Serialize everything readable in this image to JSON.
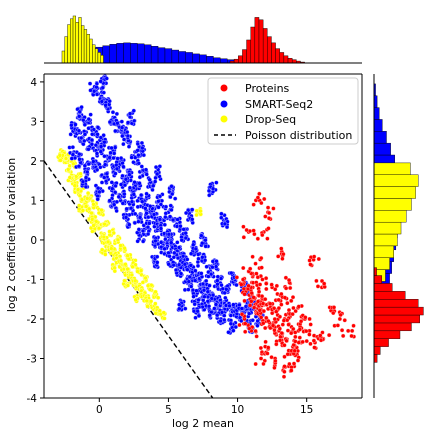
{
  "chart_data": {
    "type": "scatter",
    "title": "",
    "xlabel": "log 2 mean",
    "ylabel": "log 2 coefficient of variation",
    "xlim": [
      -4,
      19
    ],
    "ylim": [
      -4,
      4.2
    ],
    "xticks": [
      0,
      5,
      10,
      15
    ],
    "yticks": [
      -4,
      -3,
      -2,
      -1,
      0,
      1,
      2,
      3,
      4
    ],
    "grid": false,
    "legend_position": "top-right",
    "series": [
      {
        "name": "Proteins",
        "color": "#ff0000",
        "marker": "circle",
        "points": [
          [
            10.2,
            -1.1
          ],
          [
            10.6,
            -1.3
          ],
          [
            10.9,
            -1.5
          ],
          [
            11.2,
            -1.7
          ],
          [
            11.4,
            -1.6
          ],
          [
            11.6,
            -1.9
          ],
          [
            11.9,
            -1.8
          ],
          [
            12.1,
            -2.0
          ],
          [
            12.3,
            -2.2
          ],
          [
            12.6,
            -2.1
          ],
          [
            12.8,
            -2.4
          ],
          [
            13.0,
            -2.3
          ],
          [
            13.2,
            -2.6
          ],
          [
            13.5,
            -2.5
          ],
          [
            13.7,
            -2.8
          ],
          [
            14.0,
            -2.7
          ],
          [
            14.3,
            -2.9
          ],
          [
            14.6,
            -2.6
          ],
          [
            11.1,
            -1.2
          ],
          [
            11.5,
            -1.4
          ],
          [
            12.0,
            -1.5
          ],
          [
            12.4,
            -1.7
          ],
          [
            12.9,
            -1.9
          ],
          [
            13.4,
            -2.0
          ],
          [
            13.9,
            -2.2
          ],
          [
            14.4,
            -2.3
          ],
          [
            10.8,
            -0.8
          ],
          [
            11.3,
            -0.6
          ],
          [
            11.8,
            -1.0
          ],
          [
            12.5,
            -1.2
          ],
          [
            13.1,
            -1.4
          ],
          [
            13.6,
            -1.6
          ],
          [
            14.2,
            -1.8
          ],
          [
            14.8,
            -2.0
          ],
          [
            15.2,
            -2.3
          ],
          [
            15.6,
            -2.6
          ],
          [
            16.2,
            -2.5
          ],
          [
            17.0,
            -1.8
          ],
          [
            17.4,
            -2.0
          ],
          [
            18.0,
            -2.3
          ],
          [
            12.2,
            0.7
          ],
          [
            11.9,
            0.2
          ],
          [
            11.6,
            1.0
          ],
          [
            10.8,
            0.2
          ],
          [
            13.2,
            -0.3
          ],
          [
            15.5,
            -0.5
          ],
          [
            16.1,
            -1.2
          ],
          [
            11.7,
            -3.0
          ],
          [
            12.7,
            -3.1
          ],
          [
            13.3,
            -3.3
          ],
          [
            14.1,
            -3.2
          ],
          [
            11.0,
            -2.3
          ],
          [
            10.5,
            -2.0
          ],
          [
            12.0,
            -2.7
          ],
          [
            13.8,
            -1.1
          ]
        ]
      },
      {
        "name": "SMART-Seq2",
        "color": "#0000ff",
        "marker": "circle",
        "points": [
          [
            -1.8,
            2.8
          ],
          [
            -1.5,
            3.2
          ],
          [
            -1.2,
            2.6
          ],
          [
            -0.9,
            3.0
          ],
          [
            -0.6,
            2.4
          ],
          [
            -0.3,
            2.7
          ],
          [
            0.0,
            2.3
          ],
          [
            0.3,
            2.5
          ],
          [
            0.6,
            2.0
          ],
          [
            0.9,
            2.2
          ],
          [
            1.2,
            1.8
          ],
          [
            1.5,
            1.9
          ],
          [
            1.8,
            1.5
          ],
          [
            2.1,
            1.6
          ],
          [
            2.4,
            1.2
          ],
          [
            2.7,
            1.3
          ],
          [
            3.0,
            1.0
          ],
          [
            3.3,
            1.0
          ],
          [
            3.6,
            0.7
          ],
          [
            3.9,
            0.7
          ],
          [
            4.2,
            0.4
          ],
          [
            4.5,
            0.4
          ],
          [
            4.8,
            0.1
          ],
          [
            5.1,
            0.0
          ],
          [
            5.4,
            -0.2
          ],
          [
            5.7,
            -0.3
          ],
          [
            6.0,
            -0.5
          ],
          [
            6.3,
            -0.6
          ],
          [
            6.6,
            -0.8
          ],
          [
            6.9,
            -0.9
          ],
          [
            7.2,
            -1.0
          ],
          [
            7.5,
            -1.2
          ],
          [
            7.8,
            -1.3
          ],
          [
            8.1,
            -1.4
          ],
          [
            8.4,
            -1.5
          ],
          [
            8.7,
            -1.6
          ],
          [
            9.0,
            -1.7
          ],
          [
            9.3,
            -1.7
          ],
          [
            9.6,
            -1.8
          ],
          [
            9.9,
            -1.8
          ],
          [
            10.2,
            -1.9
          ],
          [
            10.5,
            -1.8
          ],
          [
            10.8,
            -1.7
          ],
          [
            11.1,
            -1.6
          ],
          [
            -1.9,
            2.2
          ],
          [
            -1.4,
            2.0
          ],
          [
            -0.8,
            1.8
          ],
          [
            -0.2,
            1.9
          ],
          [
            0.4,
            1.6
          ],
          [
            1.0,
            1.3
          ],
          [
            1.6,
            1.1
          ],
          [
            2.2,
            0.8
          ],
          [
            2.8,
            0.6
          ],
          [
            3.4,
            0.3
          ],
          [
            4.0,
            0.0
          ],
          [
            4.6,
            -0.2
          ],
          [
            5.2,
            -0.5
          ],
          [
            5.8,
            -0.8
          ],
          [
            6.4,
            -1.1
          ],
          [
            7.0,
            -1.4
          ],
          [
            7.6,
            -1.6
          ],
          [
            8.2,
            -1.8
          ],
          [
            0.1,
            3.6
          ],
          [
            0.3,
            4.0
          ],
          [
            0.6,
            3.4
          ],
          [
            1.0,
            3.1
          ],
          [
            1.4,
            2.9
          ],
          [
            2.0,
            2.5
          ],
          [
            2.6,
            2.1
          ],
          [
            3.2,
            1.7
          ],
          [
            3.8,
            1.4
          ],
          [
            4.4,
            1.0
          ],
          [
            5.0,
            0.7
          ],
          [
            5.6,
            0.4
          ],
          [
            6.2,
            0.1
          ],
          [
            6.8,
            -0.2
          ],
          [
            7.4,
            -0.5
          ],
          [
            8.0,
            -0.8
          ],
          [
            8.6,
            -1.1
          ],
          [
            9.2,
            -1.3
          ],
          [
            -0.4,
            3.8
          ],
          [
            1.8,
            2.7
          ],
          [
            2.3,
            3.1
          ],
          [
            3.0,
            2.3
          ],
          [
            4.2,
            1.7
          ],
          [
            5.3,
            1.2
          ],
          [
            6.5,
            0.6
          ],
          [
            7.6,
            0.0
          ],
          [
            8.4,
            -0.6
          ],
          [
            9.7,
            -1.0
          ],
          [
            10.5,
            -1.2
          ],
          [
            8.2,
            1.3
          ],
          [
            9.0,
            0.5
          ],
          [
            7.0,
            -1.8
          ],
          [
            6.0,
            -1.6
          ],
          [
            8.8,
            -2.0
          ],
          [
            9.6,
            -2.2
          ],
          [
            4.0,
            -0.6
          ],
          [
            3.0,
            0.1
          ],
          [
            2.0,
            0.5
          ],
          [
            1.0,
            0.9
          ],
          [
            0.0,
            1.2
          ],
          [
            -1.0,
            1.5
          ],
          [
            10.9,
            -2.2
          ],
          [
            11.6,
            -2.0
          ]
        ]
      },
      {
        "name": "Drop-Seq",
        "color": "#ffff00",
        "marker": "circle",
        "points": [
          [
            -2.6,
            2.2
          ],
          [
            -2.4,
            2.0
          ],
          [
            -2.2,
            1.8
          ],
          [
            -2.0,
            1.6
          ],
          [
            -1.8,
            1.5
          ],
          [
            -1.6,
            1.3
          ],
          [
            -1.4,
            1.2
          ],
          [
            -1.2,
            1.0
          ],
          [
            -1.0,
            0.9
          ],
          [
            -0.8,
            0.8
          ],
          [
            -0.6,
            0.6
          ],
          [
            -0.4,
            0.5
          ],
          [
            -0.2,
            0.4
          ],
          [
            0.0,
            0.3
          ],
          [
            0.2,
            0.1
          ],
          [
            0.4,
            0.0
          ],
          [
            0.6,
            -0.1
          ],
          [
            0.8,
            -0.2
          ],
          [
            1.0,
            -0.3
          ],
          [
            1.2,
            -0.4
          ],
          [
            1.4,
            -0.5
          ],
          [
            1.6,
            -0.6
          ],
          [
            1.8,
            -0.7
          ],
          [
            2.0,
            -0.8
          ],
          [
            2.2,
            -0.9
          ],
          [
            2.4,
            -1.0
          ],
          [
            2.6,
            -1.1
          ],
          [
            2.8,
            -1.2
          ],
          [
            3.0,
            -1.3
          ],
          [
            3.2,
            -1.4
          ],
          [
            3.4,
            -1.5
          ],
          [
            3.6,
            -1.6
          ],
          [
            3.9,
            -1.7
          ],
          [
            4.2,
            -1.8
          ],
          [
            4.6,
            -1.9
          ],
          [
            -2.3,
            2.1
          ],
          [
            -1.9,
            1.9
          ],
          [
            -1.5,
            1.6
          ],
          [
            -1.1,
            1.4
          ],
          [
            -0.7,
            1.1
          ],
          [
            -0.3,
            0.9
          ],
          [
            0.1,
            0.7
          ],
          [
            0.5,
            0.4
          ],
          [
            0.9,
            0.2
          ],
          [
            1.3,
            0.0
          ],
          [
            1.7,
            -0.2
          ],
          [
            2.1,
            -0.4
          ],
          [
            2.5,
            -0.6
          ],
          [
            2.9,
            -0.8
          ],
          [
            3.3,
            -1.0
          ],
          [
            3.7,
            -1.2
          ],
          [
            4.1,
            -1.4
          ],
          [
            -2.8,
            2.1
          ],
          [
            -2.1,
            1.5
          ],
          [
            -1.3,
            0.8
          ],
          [
            -0.5,
            0.3
          ],
          [
            0.3,
            -0.3
          ],
          [
            1.1,
            -0.7
          ],
          [
            1.9,
            -1.1
          ],
          [
            2.7,
            -1.5
          ],
          [
            7.2,
            0.7
          ]
        ]
      },
      {
        "name": "Poisson distribution",
        "color": "#000000",
        "line_style": "dashed",
        "x": [
          -4,
          8.2
        ],
        "y": [
          2.0,
          -4.1
        ]
      }
    ],
    "marginal_x": {
      "Drop-Seq": {
        "centers": [
          -2.6,
          -2.4,
          -2.2,
          -2.0,
          -1.8,
          -1.6,
          -1.4,
          -1.2,
          -1.0,
          -0.8,
          -0.6,
          -0.4,
          -0.2,
          0.0,
          0.2
        ],
        "counts": [
          0.25,
          0.55,
          0.8,
          0.92,
          0.98,
          0.85,
          0.95,
          0.78,
          0.7,
          0.6,
          0.5,
          0.38,
          0.3,
          0.22,
          0.16
        ]
      },
      "SMART-Seq2": {
        "centers": [
          -2.0,
          -1.5,
          -1.0,
          -0.5,
          0.0,
          0.5,
          1.0,
          1.5,
          2.0,
          2.5,
          3.0,
          3.5,
          4.0,
          4.5,
          5.0,
          5.5,
          6.0,
          6.5,
          7.0,
          7.5,
          8.0,
          8.5,
          9.0,
          9.5,
          10.0
        ],
        "counts": [
          0.05,
          0.12,
          0.2,
          0.28,
          0.33,
          0.36,
          0.39,
          0.41,
          0.42,
          0.41,
          0.4,
          0.38,
          0.35,
          0.32,
          0.3,
          0.27,
          0.24,
          0.22,
          0.19,
          0.17,
          0.14,
          0.11,
          0.09,
          0.07,
          0.05
        ]
      },
      "Proteins": {
        "centers": [
          9.6,
          9.9,
          10.2,
          10.5,
          10.8,
          11.1,
          11.4,
          11.7,
          12.0,
          12.3,
          12.6,
          12.9,
          13.2,
          13.5,
          13.8,
          14.1,
          14.4,
          14.7
        ],
        "counts": [
          0.04,
          0.08,
          0.15,
          0.28,
          0.48,
          0.75,
          0.95,
          0.9,
          0.72,
          0.55,
          0.42,
          0.3,
          0.22,
          0.15,
          0.1,
          0.07,
          0.04,
          0.02
        ]
      }
    },
    "marginal_y": {
      "Drop-Seq": {
        "centers": [
          -1.5,
          -1.2,
          -0.9,
          -0.6,
          -0.3,
          0.0,
          0.3,
          0.6,
          0.9,
          1.2,
          1.5,
          1.8
        ],
        "counts": [
          0.05,
          0.12,
          0.22,
          0.3,
          0.38,
          0.45,
          0.52,
          0.62,
          0.72,
          0.8,
          0.85,
          0.7
        ]
      },
      "SMART-Seq2": {
        "centers": [
          -2.5,
          -2.2,
          -1.9,
          -1.6,
          -1.3,
          -1.0,
          -0.7,
          -0.4,
          -0.1,
          0.2,
          0.5,
          0.8,
          1.1,
          1.4,
          1.7,
          2.0,
          2.3,
          2.6,
          2.9,
          3.2,
          3.5,
          3.8
        ],
        "counts": [
          0.04,
          0.08,
          0.12,
          0.18,
          0.24,
          0.3,
          0.34,
          0.38,
          0.42,
          0.45,
          0.47,
          0.49,
          0.5,
          0.48,
          0.45,
          0.4,
          0.32,
          0.24,
          0.16,
          0.1,
          0.06,
          0.03
        ]
      },
      "Proteins": {
        "centers": [
          -3.0,
          -2.8,
          -2.6,
          -2.4,
          -2.2,
          -2.0,
          -1.8,
          -1.6,
          -1.4,
          -1.2,
          -1.0,
          -0.8
        ],
        "counts": [
          0.06,
          0.12,
          0.28,
          0.5,
          0.72,
          0.88,
          0.95,
          0.85,
          0.6,
          0.35,
          0.15,
          0.05
        ]
      }
    }
  }
}
